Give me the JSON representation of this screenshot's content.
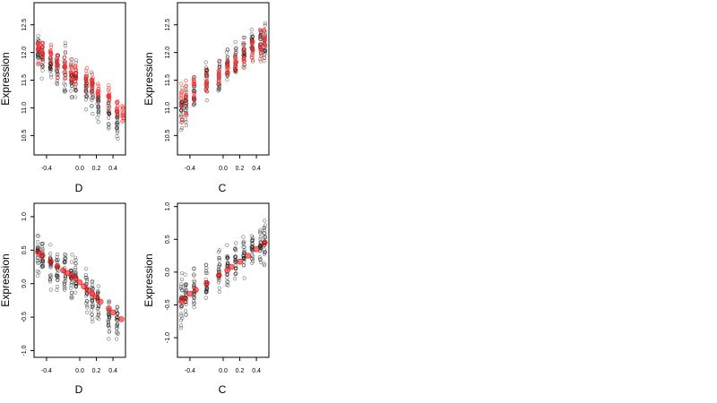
{
  "figure": {
    "background": "#ffffff"
  },
  "chart_data": [
    {
      "type": "scatter",
      "title": "",
      "xlabel": "D",
      "ylabel": "Expression",
      "xlim": [
        -0.55,
        0.55
      ],
      "ylim": [
        10.15,
        12.9
      ],
      "xticks": [
        -0.4,
        0.0,
        0.2,
        0.4
      ],
      "xtick_labels": [
        "-0.4",
        "0.0",
        "0.2",
        "0.4"
      ],
      "yticks": [
        10.5,
        11.0,
        11.5,
        12.0,
        12.5
      ],
      "ytick_labels": [
        "10.5",
        "11.0",
        "11.5",
        "12.0",
        "12.5"
      ],
      "grid": false,
      "series": [
        {
          "marker": "open-circle",
          "color": "#000000",
          "x": [
            -0.5,
            -0.45,
            -0.35,
            -0.27,
            -0.18,
            -0.1,
            -0.05,
            0.08,
            0.15,
            0.22,
            0.35,
            0.45
          ],
          "y_center": [
            12.0,
            11.9,
            11.8,
            11.75,
            11.7,
            11.6,
            11.5,
            11.4,
            11.3,
            11.1,
            10.9,
            10.8
          ],
          "y_spread": [
            0.4,
            0.45,
            0.5,
            0.5,
            0.55,
            0.55,
            0.5,
            0.5,
            0.55,
            0.5,
            0.5,
            0.45
          ],
          "points_per_x": 24
        },
        {
          "marker": "open-circle",
          "color": "#ff0000",
          "x": [
            -0.5,
            -0.45,
            -0.35,
            -0.27,
            -0.18,
            -0.1,
            -0.05,
            0.08,
            0.15,
            0.22,
            0.35,
            0.45,
            0.52
          ],
          "y_center": [
            12.05,
            12.0,
            11.9,
            11.8,
            11.75,
            11.65,
            11.6,
            11.5,
            11.4,
            11.3,
            11.2,
            11.0,
            10.9
          ],
          "y_spread": [
            0.35,
            0.35,
            0.35,
            0.35,
            0.3,
            0.3,
            0.3,
            0.3,
            0.3,
            0.3,
            0.3,
            0.3,
            0.3
          ],
          "points_per_x": 14
        }
      ]
    },
    {
      "type": "scatter",
      "title": "",
      "xlabel": "C",
      "ylabel": "Expression",
      "xlim": [
        -0.55,
        0.55
      ],
      "ylim": [
        10.15,
        12.9
      ],
      "xticks": [
        -0.4,
        0.0,
        0.2,
        0.4
      ],
      "xtick_labels": [
        "-0.4",
        "0.0",
        "0.2",
        "0.4"
      ],
      "yticks": [
        10.5,
        11.0,
        11.5,
        12.0,
        12.5
      ],
      "ytick_labels": [
        "10.5",
        "11.0",
        "11.5",
        "12.0",
        "12.5"
      ],
      "grid": false,
      "series": [
        {
          "marker": "open-circle",
          "color": "#000000",
          "x": [
            -0.5,
            -0.45,
            -0.35,
            -0.2,
            -0.05,
            0.05,
            0.15,
            0.25,
            0.35,
            0.45,
            0.5
          ],
          "y_center": [
            11.0,
            11.1,
            11.3,
            11.5,
            11.6,
            11.8,
            11.9,
            12.0,
            12.1,
            12.2,
            12.2
          ],
          "y_spread": [
            0.6,
            0.55,
            0.5,
            0.5,
            0.45,
            0.45,
            0.45,
            0.45,
            0.45,
            0.45,
            0.45
          ],
          "points_per_x": 24
        },
        {
          "marker": "open-circle",
          "color": "#ff0000",
          "x": [
            -0.5,
            -0.45,
            -0.35,
            -0.2,
            -0.05,
            0.05,
            0.15,
            0.25,
            0.35,
            0.45,
            0.5
          ],
          "y_center": [
            11.1,
            11.2,
            11.35,
            11.5,
            11.6,
            11.75,
            11.85,
            11.95,
            12.05,
            12.15,
            12.2
          ],
          "y_spread": [
            0.5,
            0.45,
            0.4,
            0.35,
            0.3,
            0.3,
            0.3,
            0.35,
            0.35,
            0.35,
            0.35
          ],
          "points_per_x": 14
        }
      ]
    },
    {
      "type": "scatter",
      "title": "",
      "xlabel": "D",
      "ylabel": "Expression",
      "xlim": [
        -0.55,
        0.55
      ],
      "ylim": [
        -1.1,
        1.2
      ],
      "xticks": [
        -0.4,
        0.0,
        0.2,
        0.4
      ],
      "xtick_labels": [
        "-0.4",
        "0.0",
        "0.2",
        "0.4"
      ],
      "yticks": [
        -1.0,
        -0.5,
        0.0,
        0.5,
        1.0
      ],
      "ytick_labels": [
        "-1.0",
        "-0.5",
        "0.0",
        "0.5",
        "1.0"
      ],
      "grid": false,
      "series": [
        {
          "marker": "open-circle",
          "color": "#000000",
          "x": [
            -0.5,
            -0.45,
            -0.35,
            -0.27,
            -0.18,
            -0.1,
            -0.05,
            0.08,
            0.15,
            0.22,
            0.35,
            0.45
          ],
          "y_center": [
            0.45,
            0.35,
            0.25,
            0.2,
            0.15,
            0.1,
            0.05,
            -0.1,
            -0.2,
            -0.3,
            -0.45,
            -0.55
          ],
          "y_spread": [
            0.4,
            0.4,
            0.45,
            0.45,
            0.5,
            0.5,
            0.45,
            0.45,
            0.45,
            0.45,
            0.4,
            0.35
          ],
          "points_per_x": 24
        },
        {
          "marker": "filled-circle",
          "color": "#ff0000",
          "x": [
            -0.5,
            -0.45,
            -0.35,
            -0.27,
            -0.2,
            -0.15,
            -0.1,
            -0.05,
            0.0,
            0.05,
            0.1,
            0.15,
            0.2,
            0.25,
            0.35,
            0.4,
            0.5
          ],
          "y": [
            0.47,
            0.42,
            0.33,
            0.26,
            0.2,
            0.16,
            0.12,
            0.08,
            0.02,
            -0.04,
            -0.1,
            -0.15,
            -0.2,
            -0.27,
            -0.37,
            -0.43,
            -0.53
          ]
        }
      ]
    },
    {
      "type": "scatter",
      "title": "",
      "xlabel": "C",
      "ylabel": "Expression",
      "xlim": [
        -0.55,
        0.55
      ],
      "ylim": [
        -1.3,
        1.05
      ],
      "xticks": [
        -0.4,
        0.0,
        0.2,
        0.4
      ],
      "xtick_labels": [
        "-0.4",
        "0.0",
        "0.2",
        "0.4"
      ],
      "yticks": [
        -1.0,
        -0.5,
        0.0,
        0.5,
        1.0
      ],
      "ytick_labels": [
        "-1.0",
        "-0.5",
        "0.0",
        "0.5",
        "1.0"
      ],
      "grid": false,
      "series": [
        {
          "marker": "open-circle",
          "color": "#000000",
          "x": [
            -0.5,
            -0.45,
            -0.35,
            -0.2,
            -0.05,
            0.05,
            0.15,
            0.25,
            0.35,
            0.45,
            0.5
          ],
          "y_center": [
            -0.5,
            -0.4,
            -0.3,
            -0.15,
            0.05,
            0.1,
            0.2,
            0.3,
            0.35,
            0.4,
            0.45
          ],
          "y_spread": [
            0.55,
            0.5,
            0.45,
            0.45,
            0.45,
            0.45,
            0.45,
            0.45,
            0.45,
            0.45,
            0.45
          ],
          "points_per_x": 24
        },
        {
          "marker": "filled-circle",
          "color": "#ff0000",
          "x": [
            -0.5,
            -0.47,
            -0.4,
            -0.33,
            -0.2,
            -0.05,
            0.05,
            0.1,
            0.2,
            0.3,
            0.4,
            0.5
          ],
          "y": [
            -0.45,
            -0.4,
            -0.33,
            -0.27,
            -0.17,
            -0.05,
            0.03,
            0.08,
            0.16,
            0.25,
            0.35,
            0.45
          ]
        }
      ]
    }
  ]
}
